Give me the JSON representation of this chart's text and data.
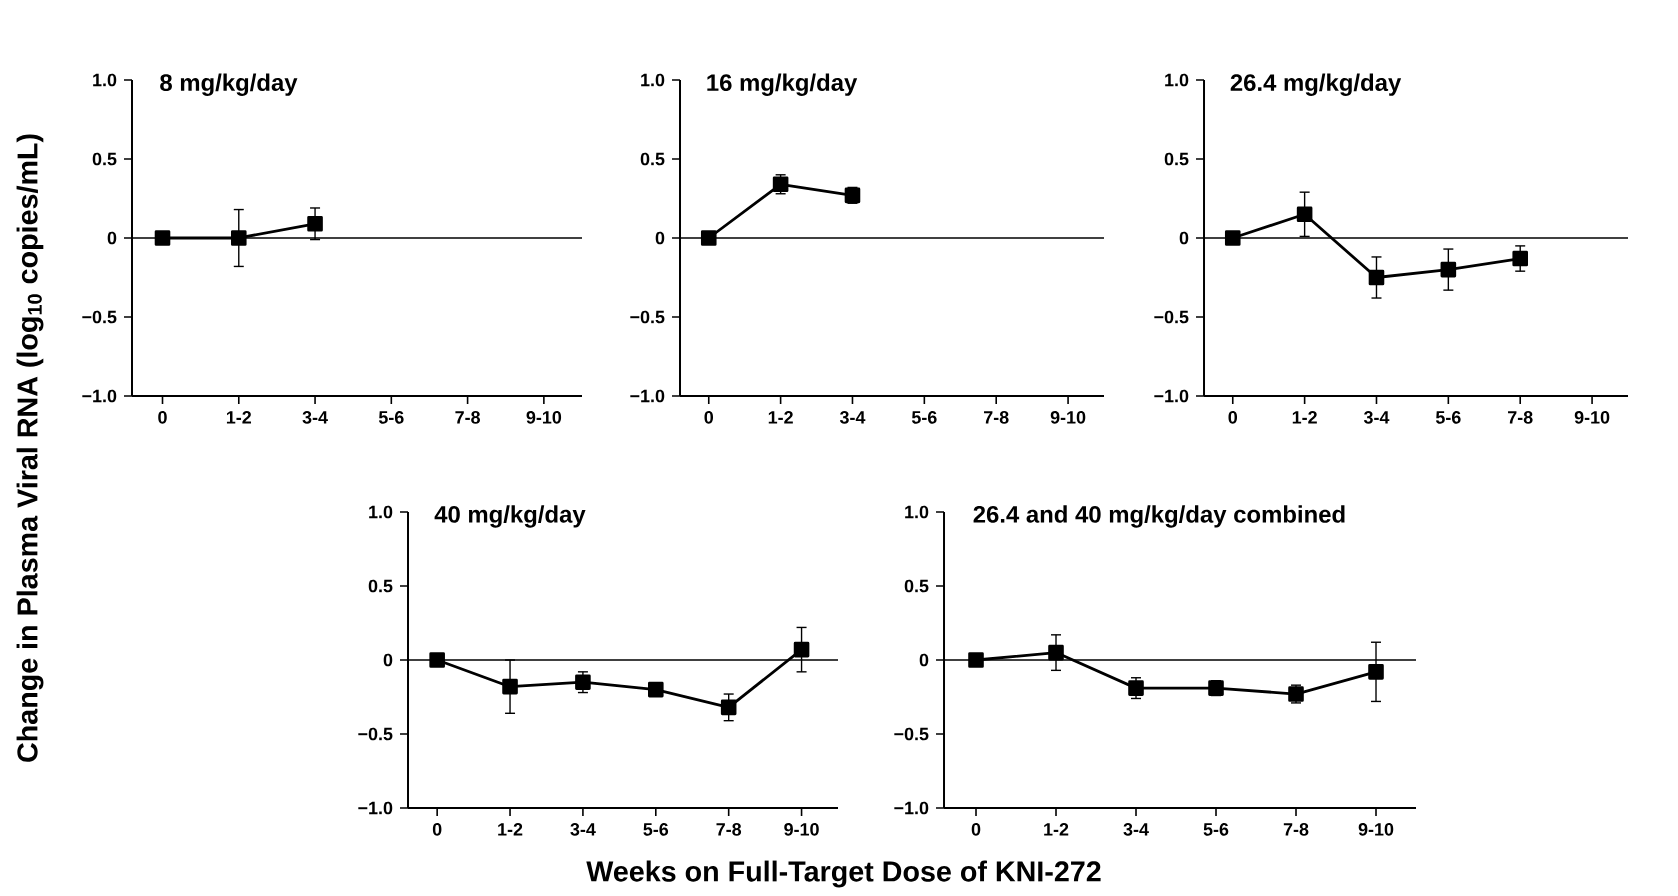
{
  "chart_data": [
    {
      "type": "line",
      "title": "8 mg/kg/day",
      "ylabel": "Change in Plasma Viral RNA (log$_{10}$ copies/mL)",
      "categories": [
        "0",
        "1-2",
        "3-4",
        "5-6",
        "7-8",
        "9-10"
      ],
      "marker": "square",
      "ylim": [
        -1,
        1
      ],
      "yticks": [
        {
          "value": -1,
          "label": "−1.0"
        },
        {
          "value": -0.5,
          "label": "−0.5"
        },
        0,
        {
          "value": 0.5,
          "label": "0.5"
        },
        {
          "value": 1,
          "label": "1.0"
        }
      ],
      "ref_lines": [
        {
          "axis": "y",
          "value": 0
        }
      ],
      "series": [
        {
          "color": "#000000",
          "values": [
            0,
            0,
            0.09,
            null,
            null,
            null
          ],
          "errors": [
            null,
            0.18,
            0.1,
            null,
            null,
            null
          ]
        }
      ]
    },
    {
      "type": "line",
      "title": "16 mg/kg/day",
      "categories": [
        "0",
        "1-2",
        "3-4",
        "5-6",
        "7-8",
        "9-10"
      ],
      "marker": "square",
      "ylim": [
        -1,
        1
      ],
      "yticks": [
        {
          "value": -1,
          "label": "−1.0"
        },
        {
          "value": -0.5,
          "label": "−0.5"
        },
        0,
        {
          "value": 0.5,
          "label": "0.5"
        },
        {
          "value": 1,
          "label": "1.0"
        }
      ],
      "ref_lines": [
        {
          "axis": "y",
          "value": 0
        }
      ],
      "series": [
        {
          "color": "#000000",
          "values": [
            0,
            0.34,
            0.27,
            null,
            null,
            null
          ],
          "errors": [
            null,
            0.06,
            0.05,
            null,
            null,
            null
          ]
        }
      ]
    },
    {
      "type": "line",
      "title": "26.4 mg/kg/day",
      "categories": [
        "0",
        "1-2",
        "3-4",
        "5-6",
        "7-8",
        "9-10"
      ],
      "marker": "square",
      "ylim": [
        -1,
        1
      ],
      "yticks": [
        {
          "value": -1,
          "label": "−1.0"
        },
        {
          "value": -0.5,
          "label": "−0.5"
        },
        0,
        {
          "value": 0.5,
          "label": "0.5"
        },
        {
          "value": 1,
          "label": "1.0"
        }
      ],
      "ref_lines": [
        {
          "axis": "y",
          "value": 0
        }
      ],
      "series": [
        {
          "color": "#000000",
          "values": [
            0,
            0.15,
            -0.25,
            -0.2,
            -0.13,
            null
          ],
          "errors": [
            null,
            0.14,
            0.13,
            0.13,
            0.08,
            null
          ]
        }
      ]
    },
    {
      "type": "line",
      "title": "40 mg/kg/day",
      "xlabel": "Weeks on Full-Target Dose of KNI-272",
      "categories": [
        "0",
        "1-2",
        "3-4",
        "5-6",
        "7-8",
        "9-10"
      ],
      "marker": "square",
      "ylim": [
        -1,
        1
      ],
      "yticks": [
        {
          "value": -1,
          "label": "−1.0"
        },
        {
          "value": -0.5,
          "label": "−0.5"
        },
        0,
        {
          "value": 0.5,
          "label": "0.5"
        },
        {
          "value": 1,
          "label": "1.0"
        }
      ],
      "ref_lines": [
        {
          "axis": "y",
          "value": 0
        }
      ],
      "series": [
        {
          "color": "#000000",
          "values": [
            0,
            -0.18,
            -0.15,
            -0.2,
            -0.32,
            0.07
          ],
          "errors": [
            null,
            0.18,
            0.07,
            0.04,
            0.09,
            0.15
          ]
        }
      ]
    },
    {
      "type": "line",
      "title": "26.4 and 40 mg/kg/day combined",
      "categories": [
        "0",
        "1-2",
        "3-4",
        "5-6",
        "7-8",
        "9-10"
      ],
      "marker": "square",
      "ylim": [
        -1,
        1
      ],
      "yticks": [
        {
          "value": -1,
          "label": "−1.0"
        },
        {
          "value": -0.5,
          "label": "−0.5"
        },
        0,
        {
          "value": 0.5,
          "label": "0.5"
        },
        {
          "value": 1,
          "label": "1.0"
        }
      ],
      "ref_lines": [
        {
          "axis": "y",
          "value": 0
        }
      ],
      "series": [
        {
          "color": "#000000",
          "values": [
            0,
            0.05,
            -0.19,
            -0.19,
            -0.23,
            -0.08
          ],
          "errors": [
            null,
            0.12,
            0.07,
            0.05,
            0.06,
            0.2
          ]
        }
      ]
    }
  ]
}
